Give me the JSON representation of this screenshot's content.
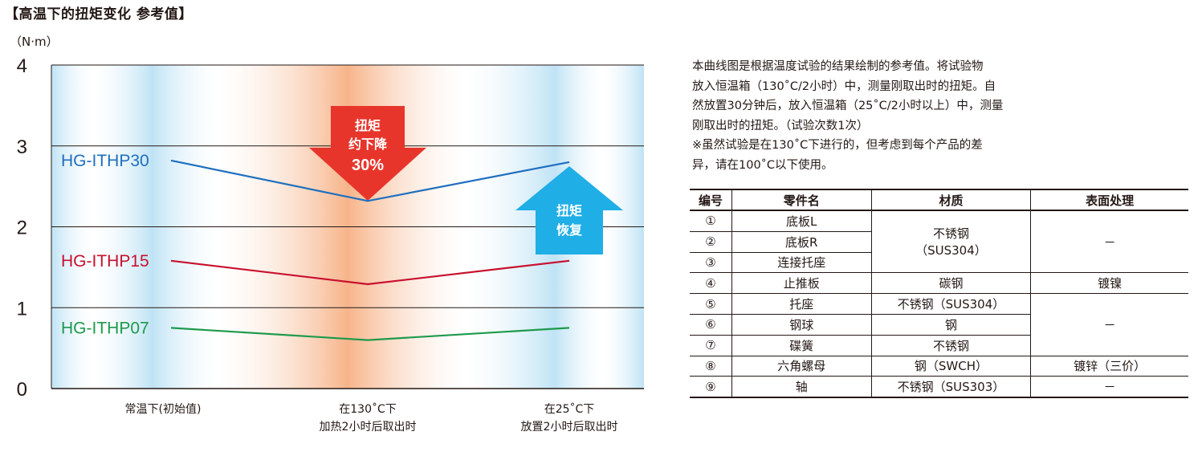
{
  "page_title": "【高温下的扭矩变化 参考值】",
  "chart_data": {
    "type": "line",
    "title": "【高温下的扭矩变化 参考值】",
    "ylabel": "（N·m）",
    "ylim": [
      0,
      4
    ],
    "yticks": [
      "0",
      "1",
      "2",
      "3",
      "4"
    ],
    "grid": true,
    "categories": [
      [
        "常温下(初始值)"
      ],
      [
        "在130˚C下",
        "加热2小时后取出时"
      ],
      [
        "在25˚C下",
        "放置2小时后取出时"
      ]
    ],
    "series": [
      {
        "name": "HG-ITHP30",
        "color": "#1f6fbf",
        "values": [
          2.82,
          2.32,
          2.8
        ]
      },
      {
        "name": "HG-ITHP15",
        "color": "#c8102e",
        "values": [
          1.58,
          1.29,
          1.58
        ]
      },
      {
        "name": "HG-ITHP07",
        "color": "#1e9a4c",
        "values": [
          0.75,
          0.6,
          0.75
        ]
      }
    ],
    "annotations": {
      "down_arrow": {
        "lines": [
          "扭矩",
          "约下降"
        ],
        "value": "30%",
        "color": "#e8352b"
      },
      "up_arrow": {
        "lines": [
          "扭矩",
          "恢复"
        ],
        "color": "#20aee6"
      }
    },
    "band_colors": {
      "cool": "#bfe3f5",
      "hot": "#f7b48a"
    }
  },
  "note": {
    "lines": [
      "本曲线图是根据温度试验的结果绘制的参考值。将试验物",
      "放入恒温箱（130˚C/2小时）中，测量刚取出时的扭矩。自",
      "然放置30分钟后，放入恒温箱（25˚C/2小时以上）中，测量",
      "刚取出时的扭矩。（试验次数1次）",
      "※虽然试验是在130˚C下进行的，但考虑到每个产品的差",
      "异，请在100˚C以下使用。"
    ]
  },
  "parts_table": {
    "headers": [
      "编号",
      "零件名",
      "材质",
      "表面处理"
    ],
    "rows": [
      {
        "no": "①",
        "name": "底板L"
      },
      {
        "no": "②",
        "name": "底板R"
      },
      {
        "no": "③",
        "name": "连接托座"
      },
      {
        "no": "④",
        "name": "止推板"
      },
      {
        "no": "⑤",
        "name": "托座"
      },
      {
        "no": "⑥",
        "name": "钢球"
      },
      {
        "no": "⑦",
        "name": "碟簧"
      },
      {
        "no": "⑧",
        "name": "六角螺母"
      },
      {
        "no": "⑨",
        "name": "轴"
      }
    ],
    "material_123": [
      "不锈钢",
      "（SUS304）"
    ],
    "surface_123": "－",
    "material_4": "碳钢",
    "surface_4": "镀镍",
    "material_5": "不锈钢（SUS304）",
    "surface_567": "－",
    "material_6": "钢",
    "material_7": "不锈钢",
    "material_8": "钢（SWCH）",
    "surface_8": "镀锌（三价）",
    "material_9": "不锈钢（SUS303）",
    "surface_9": "－"
  }
}
